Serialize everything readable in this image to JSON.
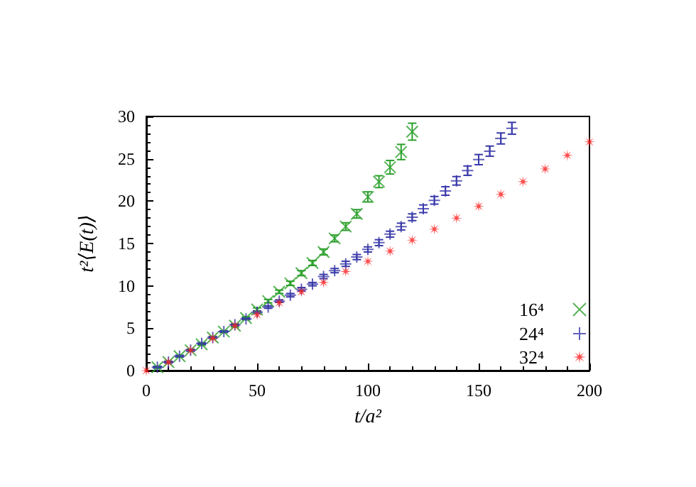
{
  "chart_data": {
    "type": "scatter",
    "xlabel": "t/a²",
    "ylabel": "t²⟨E(t)⟩",
    "xlim": [
      0,
      200
    ],
    "ylim": [
      0,
      30
    ],
    "xticks": [
      0,
      50,
      100,
      150,
      200
    ],
    "yticks": [
      0,
      5,
      10,
      15,
      20,
      25,
      30
    ],
    "grid": false,
    "legend": "bottom right",
    "series": [
      {
        "name": "16⁴",
        "color": "#2ca02c",
        "marker": "cross",
        "x": [
          5,
          10,
          15,
          20,
          25,
          30,
          35,
          40,
          45,
          50,
          55,
          60,
          65,
          70,
          75,
          80,
          85,
          90,
          95,
          100,
          105,
          110,
          115,
          120
        ],
        "values": [
          0.4,
          1.0,
          1.7,
          2.4,
          3.1,
          3.9,
          4.6,
          5.3,
          6.2,
          7.2,
          8.2,
          9.3,
          10.3,
          11.5,
          12.7,
          14.0,
          15.6,
          17.0,
          18.5,
          20.5,
          22.3,
          24.0,
          25.8,
          28.2
        ],
        "errors": [
          0.1,
          0.1,
          0.1,
          0.1,
          0.1,
          0.1,
          0.1,
          0.15,
          0.15,
          0.2,
          0.2,
          0.2,
          0.25,
          0.3,
          0.3,
          0.35,
          0.4,
          0.45,
          0.5,
          0.6,
          0.7,
          0.8,
          0.9,
          1.0
        ]
      },
      {
        "name": "24⁴",
        "color": "#3a3aaa",
        "marker": "plus",
        "x": [
          5,
          10,
          15,
          20,
          25,
          30,
          35,
          40,
          45,
          50,
          55,
          60,
          65,
          70,
          75,
          80,
          85,
          90,
          95,
          100,
          105,
          110,
          115,
          120,
          125,
          130,
          135,
          140,
          145,
          150,
          155,
          160,
          165
        ],
        "values": [
          0.4,
          1.0,
          1.7,
          2.4,
          3.2,
          3.9,
          4.6,
          5.4,
          6.1,
          6.9,
          7.5,
          8.2,
          8.9,
          9.6,
          10.2,
          11.1,
          11.8,
          12.6,
          13.4,
          14.3,
          15.1,
          16.1,
          17.0,
          18.1,
          19.1,
          20.1,
          21.2,
          22.4,
          23.6,
          24.9,
          25.9,
          27.4,
          28.6
        ],
        "errors": [
          0.1,
          0.1,
          0.1,
          0.1,
          0.1,
          0.1,
          0.1,
          0.1,
          0.1,
          0.15,
          0.15,
          0.15,
          0.2,
          0.2,
          0.2,
          0.25,
          0.25,
          0.3,
          0.3,
          0.3,
          0.35,
          0.35,
          0.4,
          0.4,
          0.45,
          0.45,
          0.5,
          0.5,
          0.55,
          0.6,
          0.6,
          0.65,
          0.7
        ]
      },
      {
        "name": "32⁴",
        "color": "#ff2020",
        "marker": "star",
        "x": [
          0,
          10,
          20,
          30,
          40,
          50,
          60,
          70,
          80,
          90,
          100,
          110,
          120,
          130,
          140,
          150,
          160,
          170,
          180,
          190,
          200
        ],
        "values": [
          0,
          1.0,
          2.4,
          3.8,
          5.3,
          6.6,
          8.0,
          9.3,
          10.4,
          11.7,
          12.9,
          14.1,
          15.4,
          16.7,
          18.0,
          19.4,
          20.8,
          22.3,
          23.8,
          25.4,
          27.0
        ]
      }
    ]
  }
}
